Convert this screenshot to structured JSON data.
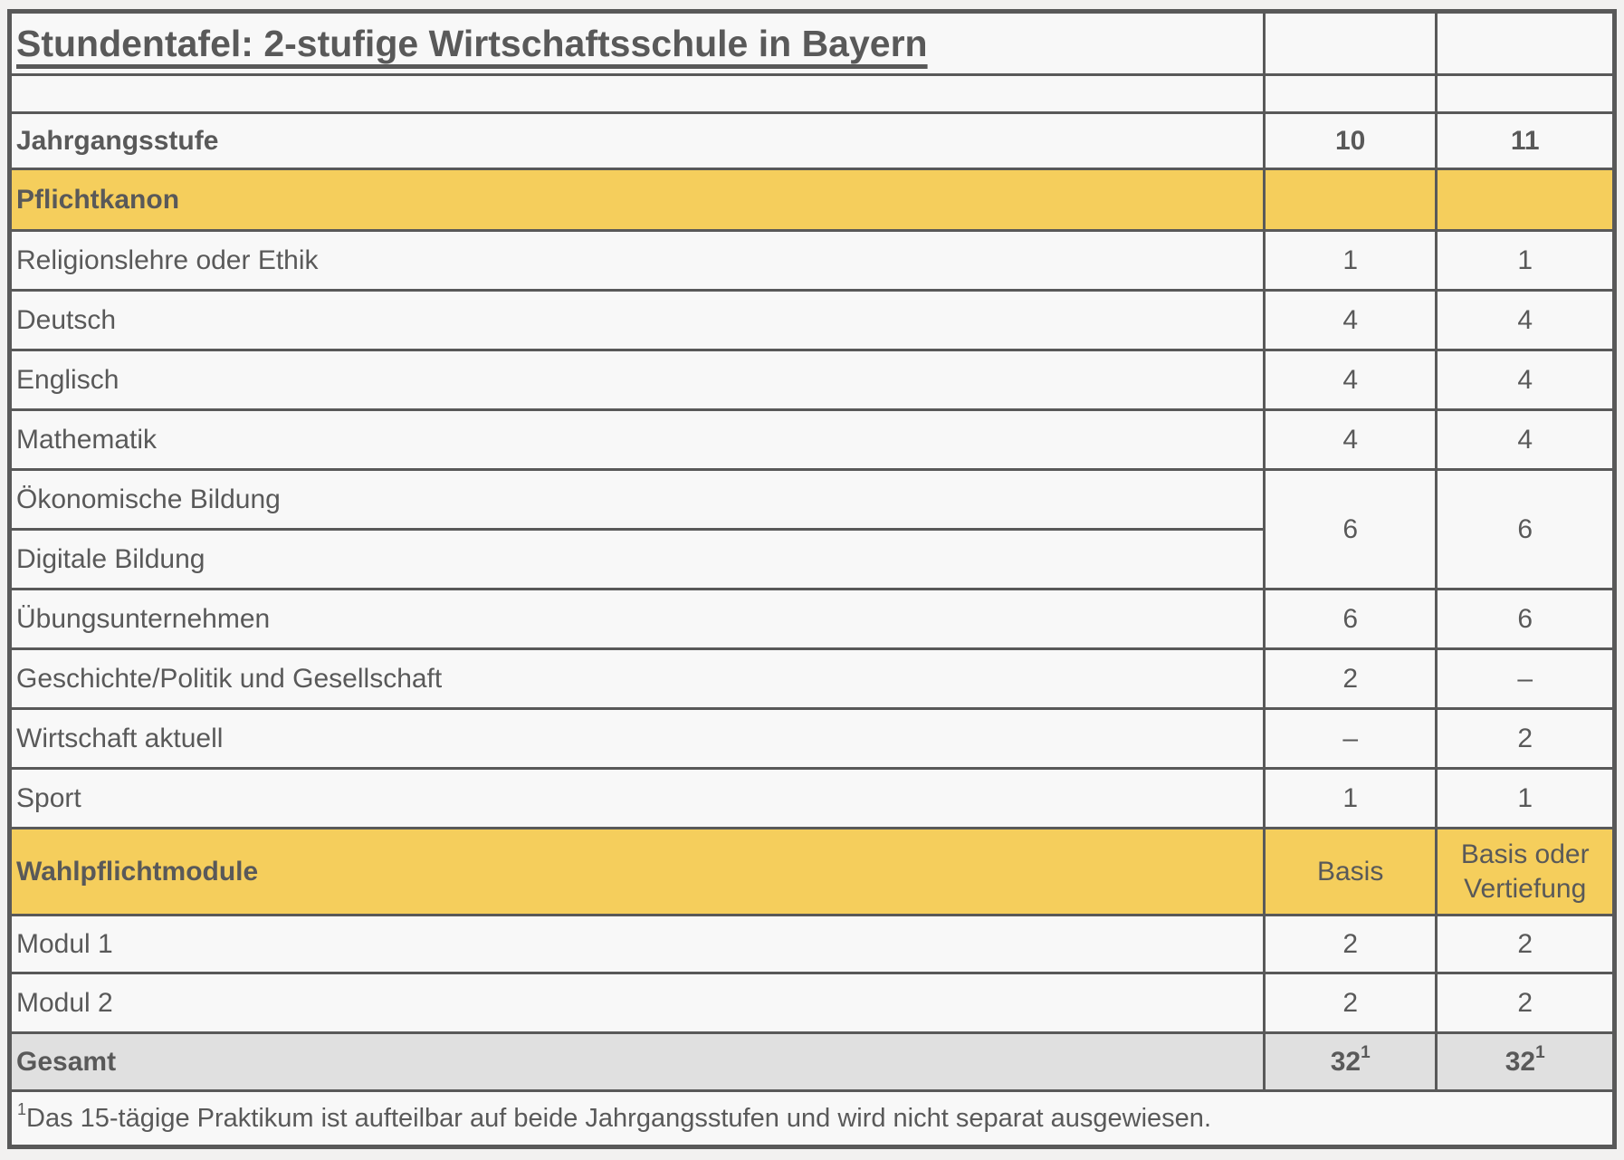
{
  "table": {
    "title": "Stundentafel: 2-stufige Wirtschaftsschule in Bayern",
    "header": {
      "label": "Jahrgangsstufe",
      "col10": "10",
      "col11": "11"
    },
    "sections": {
      "pflichtkanon": {
        "label": "Pflichtkanon"
      },
      "wahlpflichtmodule": {
        "label": "Wahlpflichtmodule",
        "v10": "Basis",
        "v11": "Basis oder Vertiefung"
      }
    },
    "rows": {
      "religion": {
        "label": "Religionslehre oder Ethik",
        "v10": "1",
        "v11": "1"
      },
      "deutsch": {
        "label": "Deutsch",
        "v10": "4",
        "v11": "4"
      },
      "englisch": {
        "label": "Englisch",
        "v10": "4",
        "v11": "4"
      },
      "mathematik": {
        "label": "Mathematik",
        "v10": "4",
        "v11": "4"
      },
      "oekonomische": {
        "label": "Ökonomische Bildung"
      },
      "digitale": {
        "label": "Digitale Bildung"
      },
      "oeko_digital_merged": {
        "v10": "6",
        "v11": "6"
      },
      "uebungsunternehmen": {
        "label": "Übungsunternehmen",
        "v10": "6",
        "v11": "6"
      },
      "geschichte": {
        "label": "Geschichte/Politik und Gesellschaft",
        "v10": "2",
        "v11": "–"
      },
      "wirtschaft": {
        "label": "Wirtschaft aktuell",
        "v10": "–",
        "v11": "2"
      },
      "sport": {
        "label": "Sport",
        "v10": "1",
        "v11": "1"
      },
      "modul1": {
        "label": "Modul 1",
        "v10": "2",
        "v11": "2"
      },
      "modul2": {
        "label": "Modul 2",
        "v10": "2",
        "v11": "2"
      }
    },
    "total": {
      "label": "Gesamt",
      "v10": "32",
      "v11": "32",
      "sup": "1"
    },
    "footnote": {
      "marker": "1",
      "text": "Das 15-tägige Praktikum ist aufteilbar auf beide Jahrgangsstufen und wird nicht separat ausgewiesen."
    }
  },
  "colors": {
    "section_yellow": "#F5CE5C",
    "total_gray": "#E0E0E0",
    "border_gray": "#595959",
    "text_gray": "#595959",
    "cell_background": "#F8F8F8",
    "page_background": "#F2F1F0"
  }
}
